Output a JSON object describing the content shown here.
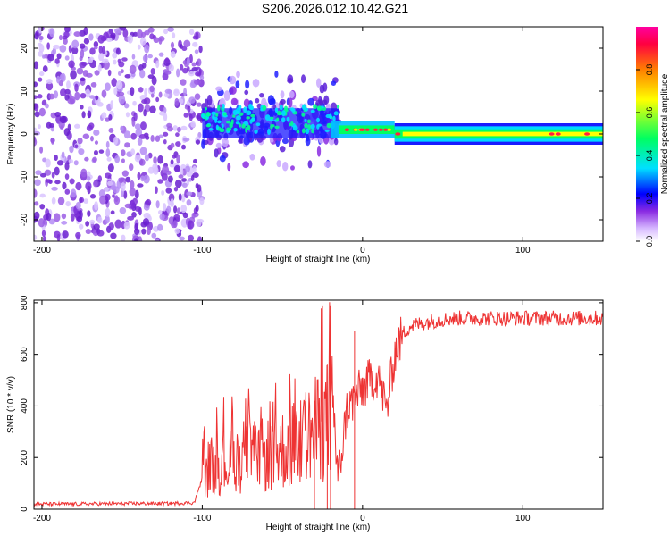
{
  "title": "S206.2026.012.10.42.G21",
  "chart_data": [
    {
      "type": "heatmap",
      "id": "spectrogram",
      "xlabel": "Height of straight line (km)",
      "ylabel": "Frequency (Hz)",
      "xlim": [
        -205,
        150
      ],
      "ylim": [
        -25,
        25
      ],
      "x_ticks": [
        -200,
        -100,
        0,
        100
      ],
      "y_ticks": [
        -20,
        -10,
        0,
        10,
        20
      ],
      "colorbar": {
        "label": "Normalized spectral amplitude",
        "range": [
          0,
          1
        ],
        "ticks": [
          0.0,
          0.2,
          0.4,
          0.6,
          0.8
        ],
        "colors": [
          "#ffffff",
          "#d6b8ff",
          "#8a2be2",
          "#0000ff",
          "#00e0ff",
          "#00ff60",
          "#ffff00",
          "#ff7f00",
          "#ff0040",
          "#ff00a0"
        ]
      },
      "regions": [
        {
          "name": "noise",
          "x_range": [
            -205,
            -100
          ],
          "f_range": [
            -25,
            25
          ],
          "amplitude": 0.1
        },
        {
          "name": "multipath",
          "x_range": [
            -100,
            -15
          ],
          "f_range": [
            -5,
            10
          ],
          "amplitude": 0.35
        },
        {
          "name": "transition",
          "x_range": [
            -20,
            20
          ],
          "f_center": 1,
          "amplitude": 0.7
        },
        {
          "name": "carrier-line",
          "x_range": [
            20,
            150
          ],
          "f_center": 0,
          "amplitude": 0.7
        }
      ]
    },
    {
      "type": "line",
      "id": "snr",
      "xlabel": "Height of straight line (km)",
      "ylabel": "SNR (10 * v/v)",
      "xlim": [
        -205,
        150
      ],
      "ylim": [
        0,
        810
      ],
      "x_ticks": [
        -200,
        -100,
        0,
        100
      ],
      "y_ticks": [
        0,
        200,
        400,
        600,
        800
      ],
      "series": [
        {
          "name": "SNR",
          "color": "#ee3333",
          "x": [
            -205,
            -180,
            -150,
            -120,
            -105,
            -100,
            -95,
            -90,
            -80,
            -70,
            -60,
            -50,
            -40,
            -30,
            -25,
            -20,
            -18,
            -15,
            -10,
            -5,
            0,
            5,
            10,
            15,
            20,
            25,
            30,
            40,
            50,
            60,
            80,
            100,
            120,
            150
          ],
          "y": [
            20,
            20,
            22,
            22,
            25,
            120,
            160,
            170,
            190,
            200,
            210,
            230,
            260,
            300,
            330,
            350,
            400,
            120,
            380,
            430,
            470,
            500,
            520,
            380,
            600,
            680,
            710,
            725,
            735,
            740,
            740,
            740,
            740,
            740
          ]
        }
      ]
    }
  ]
}
